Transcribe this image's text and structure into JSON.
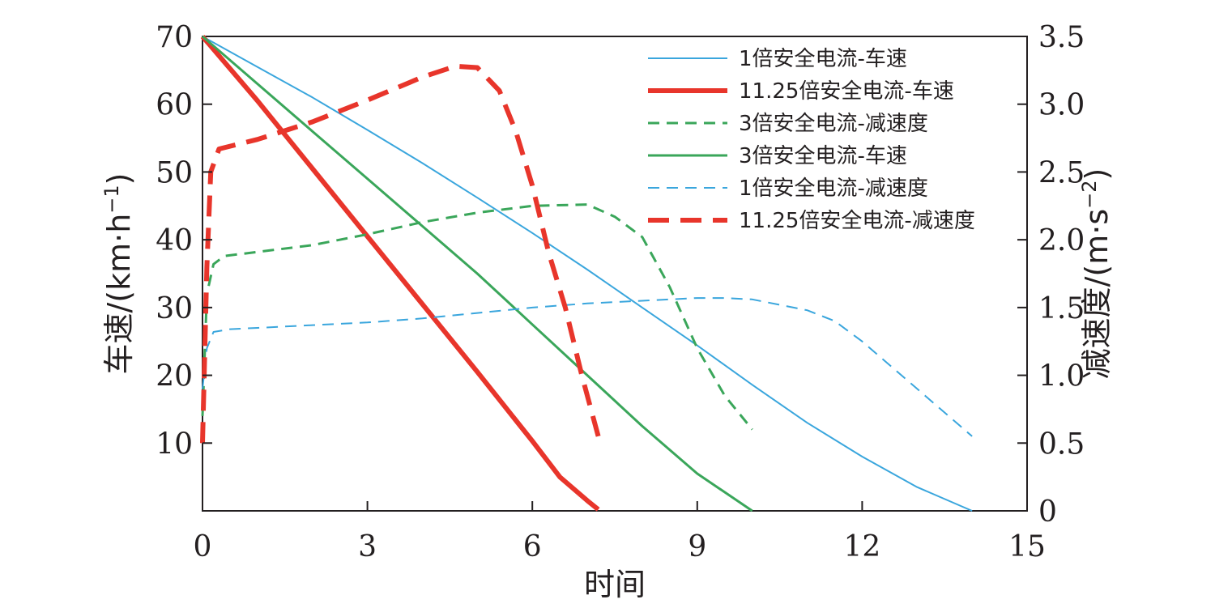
{
  "chart_data": {
    "type": "line",
    "xlabel": "时间",
    "ylabel_left": "车速/(km·h",
    "ylabel_left_sup": "−1",
    "ylabel_left_close": ")",
    "ylabel_right": "减速度/(m·s",
    "ylabel_right_sup": "−2",
    "ylabel_right_close": ")",
    "xlim": [
      0,
      15
    ],
    "ylim_left": [
      0,
      70
    ],
    "ylim_right": [
      0,
      3.5
    ],
    "x_ticks": [
      "0",
      "3",
      "6",
      "9",
      "12",
      "15"
    ],
    "y_left_ticks": [
      "10",
      "20",
      "30",
      "40",
      "50",
      "60",
      "70"
    ],
    "y_right_ticks": [
      "0",
      "0.5",
      "1.0",
      "1.5",
      "2.0",
      "2.5",
      "3.0",
      "3.5"
    ],
    "grid": false,
    "legend_position": "top-right",
    "series": [
      {
        "name": "1倍安全电流-车速",
        "axis": "left",
        "color": "#3aa6dd",
        "dash": "solid",
        "width": 2,
        "points": [
          [
            0,
            70
          ],
          [
            1,
            65.5
          ],
          [
            2,
            61
          ],
          [
            3,
            56.2
          ],
          [
            4,
            51.3
          ],
          [
            5,
            46.2
          ],
          [
            6,
            41
          ],
          [
            7,
            35.6
          ],
          [
            8,
            30
          ],
          [
            9,
            24.4
          ],
          [
            10,
            18.6
          ],
          [
            11,
            13
          ],
          [
            12,
            8
          ],
          [
            13,
            3.5
          ],
          [
            14,
            0
          ]
        ]
      },
      {
        "name": "11.25倍安全电流-车速",
        "axis": "left",
        "color": "#e8352b",
        "dash": "solid",
        "width": 6,
        "points": [
          [
            0,
            70
          ],
          [
            1,
            60.5
          ],
          [
            2,
            50.5
          ],
          [
            3,
            40.5
          ],
          [
            4,
            30.5
          ],
          [
            5,
            20.5
          ],
          [
            6,
            10.3
          ],
          [
            6.5,
            5
          ],
          [
            7,
            1.5
          ],
          [
            7.2,
            0.2
          ]
        ]
      },
      {
        "name": "3倍安全电流-减速度",
        "axis": "right",
        "color": "#3aa65a",
        "dash": "dashed",
        "width": 3,
        "points": [
          [
            0,
            0.7
          ],
          [
            0.08,
            1.6
          ],
          [
            0.2,
            1.82
          ],
          [
            0.4,
            1.88
          ],
          [
            1,
            1.91
          ],
          [
            2,
            1.96
          ],
          [
            3,
            2.04
          ],
          [
            4,
            2.13
          ],
          [
            5,
            2.2
          ],
          [
            6,
            2.25
          ],
          [
            7,
            2.26
          ],
          [
            7.5,
            2.17
          ],
          [
            8,
            2.02
          ],
          [
            8.5,
            1.65
          ],
          [
            9,
            1.2
          ],
          [
            9.5,
            0.85
          ],
          [
            10,
            0.6
          ]
        ]
      },
      {
        "name": "3倍安全电流-车速",
        "axis": "left",
        "color": "#3aa65a",
        "dash": "solid",
        "width": 3,
        "points": [
          [
            0,
            70
          ],
          [
            1,
            63
          ],
          [
            2,
            56
          ],
          [
            3,
            49
          ],
          [
            4,
            42
          ],
          [
            5,
            35
          ],
          [
            6,
            27.5
          ],
          [
            7,
            20
          ],
          [
            8,
            12.5
          ],
          [
            9,
            5.5
          ],
          [
            10,
            0
          ]
        ]
      },
      {
        "name": "1倍安全电流-减速度",
        "axis": "right",
        "color": "#3aa6dd",
        "dash": "dashed",
        "width": 2,
        "points": [
          [
            0,
            0.9
          ],
          [
            0.08,
            1.2
          ],
          [
            0.2,
            1.32
          ],
          [
            0.5,
            1.34
          ],
          [
            1,
            1.35
          ],
          [
            2,
            1.37
          ],
          [
            3,
            1.39
          ],
          [
            4,
            1.42
          ],
          [
            5,
            1.46
          ],
          [
            6,
            1.5
          ],
          [
            7,
            1.53
          ],
          [
            8,
            1.55
          ],
          [
            9,
            1.57
          ],
          [
            9.5,
            1.57
          ],
          [
            10,
            1.56
          ],
          [
            11,
            1.48
          ],
          [
            11.5,
            1.4
          ],
          [
            12,
            1.25
          ],
          [
            13,
            0.9
          ],
          [
            14,
            0.55
          ]
        ]
      },
      {
        "name": "11.25倍安全电流-减速度",
        "axis": "right",
        "color": "#e8352b",
        "dash": "bigdash",
        "width": 6,
        "points": [
          [
            0,
            0.5
          ],
          [
            0.08,
            1.8
          ],
          [
            0.15,
            2.5
          ],
          [
            0.3,
            2.67
          ],
          [
            1,
            2.74
          ],
          [
            2,
            2.87
          ],
          [
            3,
            3.03
          ],
          [
            4,
            3.2
          ],
          [
            4.6,
            3.28
          ],
          [
            5,
            3.27
          ],
          [
            5.4,
            3.1
          ],
          [
            5.7,
            2.8
          ],
          [
            6,
            2.4
          ],
          [
            6.3,
            1.9
          ],
          [
            6.6,
            1.5
          ],
          [
            6.9,
            1.0
          ],
          [
            7.2,
            0.55
          ]
        ]
      }
    ]
  }
}
